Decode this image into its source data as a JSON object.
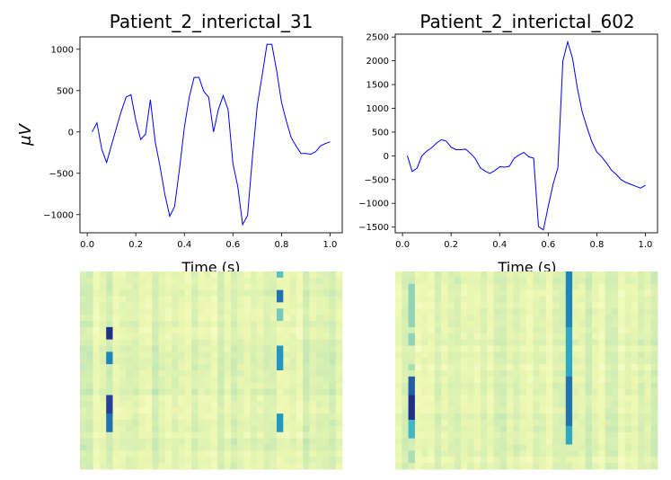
{
  "chart_data": [
    {
      "type": "line",
      "title": "Patient_2_interictal_31",
      "xlabel": "Time (s)",
      "ylabel": "μV",
      "xlim": [
        -0.03,
        1.05
      ],
      "ylim": [
        -1220,
        1150
      ],
      "xticks": [
        0.0,
        0.2,
        0.4,
        0.6,
        0.8,
        1.0
      ],
      "xtick_labels": [
        "0.0",
        "0.2",
        "0.4",
        "0.6",
        "0.8",
        "1.0"
      ],
      "yticks": [
        -1000,
        -500,
        0,
        500,
        1000
      ],
      "ytick_labels": [
        "−1000",
        "−500",
        "0",
        "500",
        "1000"
      ],
      "color": "#0000ff",
      "x": [
        0.02,
        0.04,
        0.06,
        0.08,
        0.1,
        0.12,
        0.14,
        0.16,
        0.18,
        0.2,
        0.22,
        0.24,
        0.26,
        0.28,
        0.3,
        0.32,
        0.34,
        0.36,
        0.38,
        0.4,
        0.42,
        0.44,
        0.46,
        0.48,
        0.5,
        0.52,
        0.54,
        0.56,
        0.58,
        0.6,
        0.62,
        0.64,
        0.66,
        0.68,
        0.7,
        0.72,
        0.74,
        0.76,
        0.78,
        0.8,
        0.82,
        0.84,
        0.86,
        0.88,
        0.9,
        0.92,
        0.94,
        0.96,
        0.98,
        1.0
      ],
      "y": [
        0,
        110,
        -210,
        -370,
        -160,
        50,
        250,
        420,
        450,
        140,
        -90,
        -30,
        390,
        -120,
        -420,
        -760,
        -1020,
        -900,
        -440,
        60,
        420,
        660,
        660,
        490,
        420,
        0,
        270,
        440,
        270,
        -380,
        -660,
        -1120,
        -1010,
        -310,
        320,
        680,
        1060,
        1060,
        740,
        360,
        130,
        -70,
        -170,
        -260,
        -260,
        -270,
        -240,
        -170,
        -140,
        -120
      ]
    },
    {
      "type": "line",
      "title": "Patient_2_interictal_602",
      "xlabel": "Time (s)",
      "ylabel": "",
      "xlim": [
        -0.03,
        1.05
      ],
      "ylim": [
        -1620,
        2560
      ],
      "xticks": [
        0.0,
        0.2,
        0.4,
        0.6,
        0.8,
        1.0
      ],
      "xtick_labels": [
        "0.0",
        "0.2",
        "0.4",
        "0.6",
        "0.8",
        "1.0"
      ],
      "yticks": [
        -1500,
        -1000,
        -500,
        0,
        500,
        1000,
        1500,
        2000,
        2500
      ],
      "ytick_labels": [
        "−1500",
        "−1000",
        "−500",
        "0",
        "500",
        "1000",
        "1500",
        "2000",
        "2500"
      ],
      "color": "#0000ff",
      "x": [
        0.02,
        0.04,
        0.06,
        0.08,
        0.1,
        0.12,
        0.14,
        0.16,
        0.18,
        0.2,
        0.22,
        0.24,
        0.26,
        0.28,
        0.3,
        0.32,
        0.34,
        0.36,
        0.38,
        0.4,
        0.42,
        0.44,
        0.46,
        0.48,
        0.5,
        0.52,
        0.54,
        0.56,
        0.58,
        0.6,
        0.62,
        0.64,
        0.66,
        0.68,
        0.7,
        0.72,
        0.74,
        0.76,
        0.78,
        0.8,
        0.82,
        0.84,
        0.86,
        0.88,
        0.9,
        0.92,
        0.94,
        0.96,
        0.98,
        1.0
      ],
      "y": [
        0,
        -330,
        -260,
        0,
        100,
        170,
        270,
        340,
        310,
        180,
        130,
        130,
        140,
        50,
        -60,
        -250,
        -320,
        -370,
        -310,
        -230,
        -240,
        -220,
        -50,
        20,
        70,
        -20,
        -50,
        -1490,
        -1560,
        -1070,
        -600,
        -250,
        1990,
        2400,
        2050,
        1420,
        920,
        590,
        290,
        80,
        -20,
        -150,
        -300,
        -390,
        -500,
        -560,
        -600,
        -640,
        -680,
        -620
      ]
    },
    {
      "type": "heatmap",
      "colormap": "YlGnBu",
      "rows": 32,
      "cols": 40,
      "hot_columns": [
        {
          "col": 4,
          "rows": [
            [
              2,
              3,
              0.25
            ],
            [
              9,
              11,
              0.9
            ],
            [
              13,
              15,
              0.65
            ],
            [
              20,
              23,
              0.85
            ],
            [
              23,
              26,
              0.7
            ],
            [
              6,
              8,
              0.15
            ]
          ]
        },
        {
          "col": 30,
          "rows": [
            [
              0,
              1,
              0.45
            ],
            [
              3,
              5,
              0.7
            ],
            [
              6,
              8,
              0.4
            ],
            [
              12,
              16,
              0.6
            ],
            [
              23,
              26,
              0.6
            ]
          ]
        },
        {
          "col": 29,
          "rows": [
            [
              2,
              3,
              0.2
            ],
            [
              24,
              26,
              0.2
            ]
          ]
        },
        {
          "col": 11,
          "rows": [
            [
              20,
              22,
              0.2
            ]
          ]
        },
        {
          "col": 14,
          "rows": [
            [
              3,
              5,
              0.15
            ],
            [
              17,
              19,
              0.2
            ]
          ]
        }
      ]
    },
    {
      "type": "heatmap",
      "colormap": "YlGnBu",
      "rows": 32,
      "cols": 40,
      "hot_columns": [
        {
          "col": 2,
          "rows": [
            [
              2,
              9,
              0.35
            ],
            [
              10,
              12,
              0.35
            ],
            [
              15,
              16,
              0.3
            ],
            [
              17,
              20,
              0.75
            ],
            [
              20,
              24,
              0.9
            ],
            [
              24,
              27,
              0.5
            ],
            [
              29,
              31,
              0.3
            ]
          ]
        },
        {
          "col": 26,
          "rows": [
            [
              0,
              9,
              0.65
            ],
            [
              9,
              17,
              0.55
            ],
            [
              17,
              25,
              0.7
            ],
            [
              25,
              28,
              0.55
            ]
          ]
        },
        {
          "col": 25,
          "rows": [
            [
              3,
              8,
              0.2
            ],
            [
              18,
              22,
              0.2
            ]
          ]
        },
        {
          "col": 18,
          "rows": [
            [
              2,
              8,
              0.15
            ]
          ]
        }
      ]
    }
  ]
}
